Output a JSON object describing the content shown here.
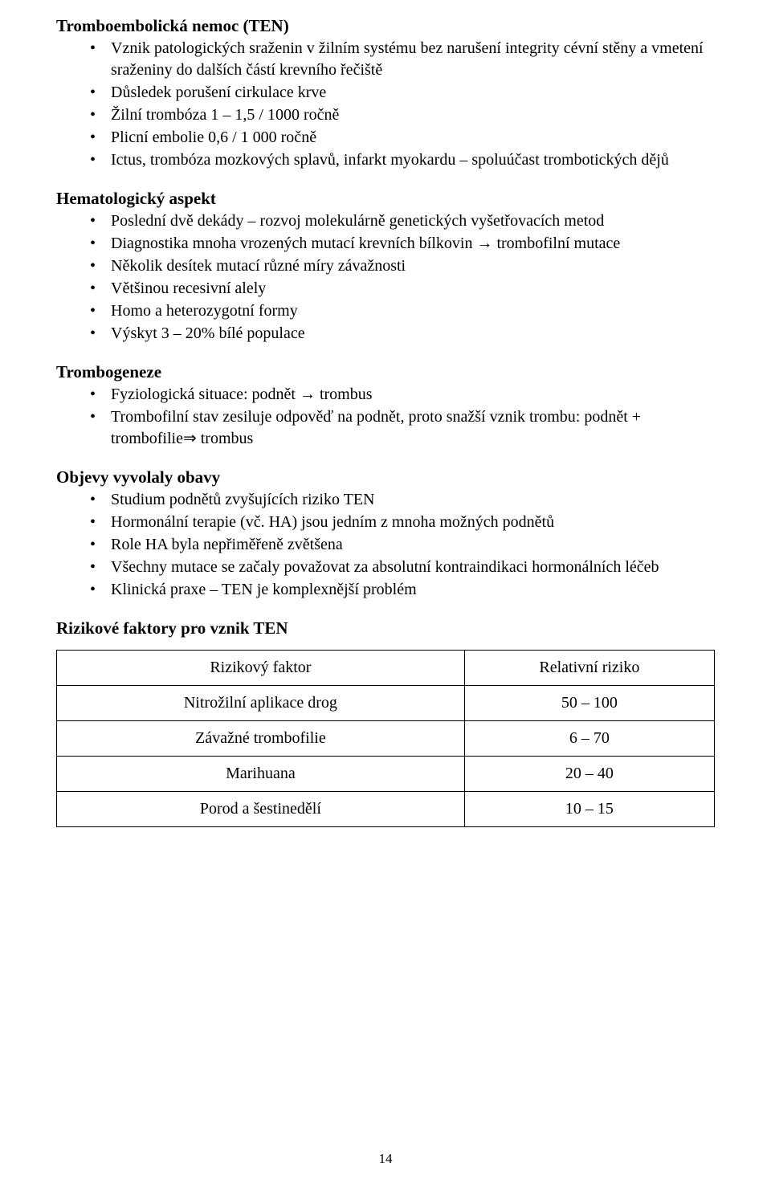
{
  "sections": [
    {
      "heading": "Tromboembolická nemoc (TEN)",
      "items": [
        "Vznik patologických sraženin v žilním systému bez narušení integrity cévní stěny a vmetení sraženiny do dalších částí krevního řečiště",
        "Důsledek porušení cirkulace krve",
        "Žilní trombóza 1 – 1,5 / 1000 ročně",
        "Plicní embolie 0,6 / 1 000 ročně",
        "Ictus, trombóza mozkových splavů, infarkt myokardu – spoluúčast trombotických dějů"
      ]
    },
    {
      "heading": "Hematologický aspekt",
      "items": [
        "Poslední dvě dekády – rozvoj molekulárně genetických vyšetřovacích metod",
        "Diagnostika mnoha vrozených mutací krevních bílkovin → trombofilní mutace",
        "Několik desítek mutací různé míry závažnosti",
        "Většinou recesivní alely",
        "Homo a heterozygotní formy",
        "Výskyt 3 – 20% bílé populace"
      ]
    },
    {
      "heading": "Trombogeneze",
      "items": [
        "Fyziologická situace: podnět → trombus",
        "Trombofilní stav zesiluje odpověď na podnět, proto snažší vznik trombu: podnět + trombofilie⇒ trombus"
      ]
    },
    {
      "heading": "Objevy vyvolaly obavy",
      "items": [
        "Studium podnětů zvyšujících riziko TEN",
        "Hormonální terapie (vč. HA) jsou jedním z mnoha možných podnětů",
        "Role HA byla nepřiměřeně zvětšena",
        "Všechny mutace se začaly považovat za absolutní kontraindikaci hormonálních léčeb",
        "Klinická praxe – TEN je komplexnější problém"
      ]
    },
    {
      "heading": "Rizikové faktory pro vznik TEN",
      "items": []
    }
  ],
  "table": {
    "columns": [
      "Rizikový faktor",
      "Relativní riziko"
    ],
    "rows": [
      [
        "Nitrožilní aplikace drog",
        "50 – 100"
      ],
      [
        "Závažné trombofilie",
        "6 – 70"
      ],
      [
        "Marihuana",
        "20 – 40"
      ],
      [
        "Porod a šestinedělí",
        "10 – 15"
      ]
    ]
  },
  "page_number": "14"
}
